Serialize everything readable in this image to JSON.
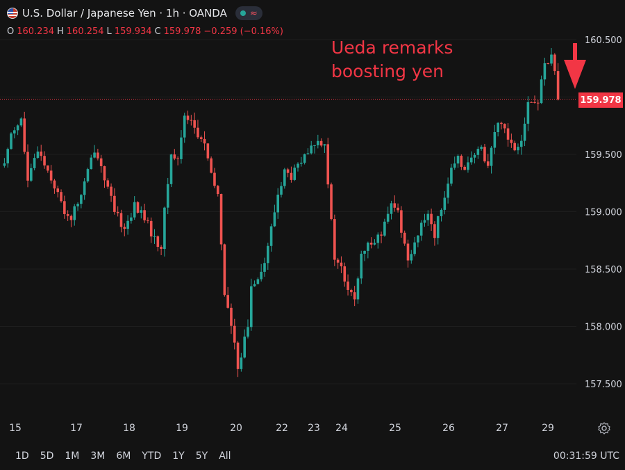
{
  "header": {
    "title": "U.S. Dollar / Japanese Yen · 1h · OANDA",
    "status_icon": "market-open-dot",
    "wave_icon": "≈"
  },
  "ohlc": {
    "o_label": "O",
    "o": "160.234",
    "h_label": "H",
    "h": "160.254",
    "l_label": "L",
    "l": "159.934",
    "c_label": "C",
    "c": "159.978",
    "change": "−0.259 (−0.16%)"
  },
  "annotation": {
    "line1": "Ueda remarks",
    "line2": "boosting yen",
    "arrow_color": "#f23645"
  },
  "last_price": "159.978",
  "bottom": {
    "ranges": [
      "1D",
      "5D",
      "1M",
      "3M",
      "6M",
      "YTD",
      "1Y",
      "5Y",
      "All"
    ],
    "time": "00:31:59 UTC"
  },
  "colors": {
    "up": "#26a69a",
    "down": "#ef5350",
    "background": "#131313",
    "grid": "#1f1f1f"
  },
  "chart_data": {
    "type": "candlestick",
    "symbol": "USD/JPY",
    "interval": "1h",
    "ylim": [
      157.35,
      160.6
    ],
    "y_ticks": [
      "160.500",
      "160.000",
      "159.500",
      "159.000",
      "158.500",
      "158.000",
      "157.500"
    ],
    "x_ticks": [
      "15",
      "17",
      "18",
      "19",
      "20",
      "22",
      "23",
      "24",
      "25",
      "26",
      "27",
      "29"
    ],
    "last_close": 159.978,
    "path": [
      [
        0,
        159.4
      ],
      [
        2,
        159.7
      ],
      [
        5,
        159.8
      ],
      [
        7,
        159.25
      ],
      [
        10,
        159.55
      ],
      [
        14,
        159.3
      ],
      [
        18,
        159.0
      ],
      [
        20,
        158.95
      ],
      [
        23,
        159.15
      ],
      [
        27,
        159.55
      ],
      [
        29,
        159.4
      ],
      [
        33,
        159.0
      ],
      [
        36,
        158.85
      ],
      [
        39,
        159.05
      ],
      [
        42,
        158.95
      ],
      [
        45,
        158.75
      ],
      [
        47,
        158.7
      ],
      [
        48,
        159.0
      ],
      [
        50,
        159.5
      ],
      [
        52,
        159.45
      ],
      [
        54,
        159.85
      ],
      [
        56,
        159.8
      ],
      [
        58,
        159.65
      ],
      [
        60,
        159.6
      ],
      [
        62,
        159.3
      ],
      [
        64,
        159.15
      ],
      [
        66,
        158.3
      ],
      [
        68,
        158.0
      ],
      [
        70,
        157.65
      ],
      [
        73,
        158.0
      ],
      [
        74,
        158.35
      ],
      [
        76,
        158.45
      ],
      [
        78,
        158.55
      ],
      [
        80,
        158.85
      ],
      [
        82,
        159.15
      ],
      [
        84,
        159.35
      ],
      [
        86,
        159.3
      ],
      [
        88,
        159.4
      ],
      [
        91,
        159.5
      ],
      [
        93,
        159.6
      ],
      [
        96,
        159.62
      ],
      [
        98,
        158.9
      ],
      [
        99,
        158.6
      ],
      [
        101,
        158.5
      ],
      [
        103,
        158.3
      ],
      [
        105,
        158.25
      ],
      [
        107,
        158.6
      ],
      [
        110,
        158.75
      ],
      [
        113,
        158.8
      ],
      [
        116,
        159.05
      ],
      [
        118,
        159.0
      ],
      [
        120,
        158.7
      ],
      [
        121,
        158.6
      ],
      [
        124,
        158.8
      ],
      [
        127,
        159.0
      ],
      [
        129,
        158.8
      ],
      [
        131,
        159.05
      ],
      [
        134,
        159.35
      ],
      [
        136,
        159.45
      ],
      [
        138,
        159.4
      ],
      [
        140,
        159.45
      ],
      [
        143,
        159.55
      ],
      [
        145,
        159.4
      ],
      [
        147,
        159.7
      ],
      [
        149,
        159.8
      ],
      [
        151,
        159.65
      ],
      [
        153,
        159.55
      ],
      [
        155,
        159.65
      ],
      [
        157,
        159.95
      ],
      [
        160,
        159.95
      ],
      [
        162,
        160.3
      ],
      [
        164,
        160.35
      ],
      [
        165,
        160.25
      ],
      [
        166,
        159.978
      ]
    ]
  }
}
